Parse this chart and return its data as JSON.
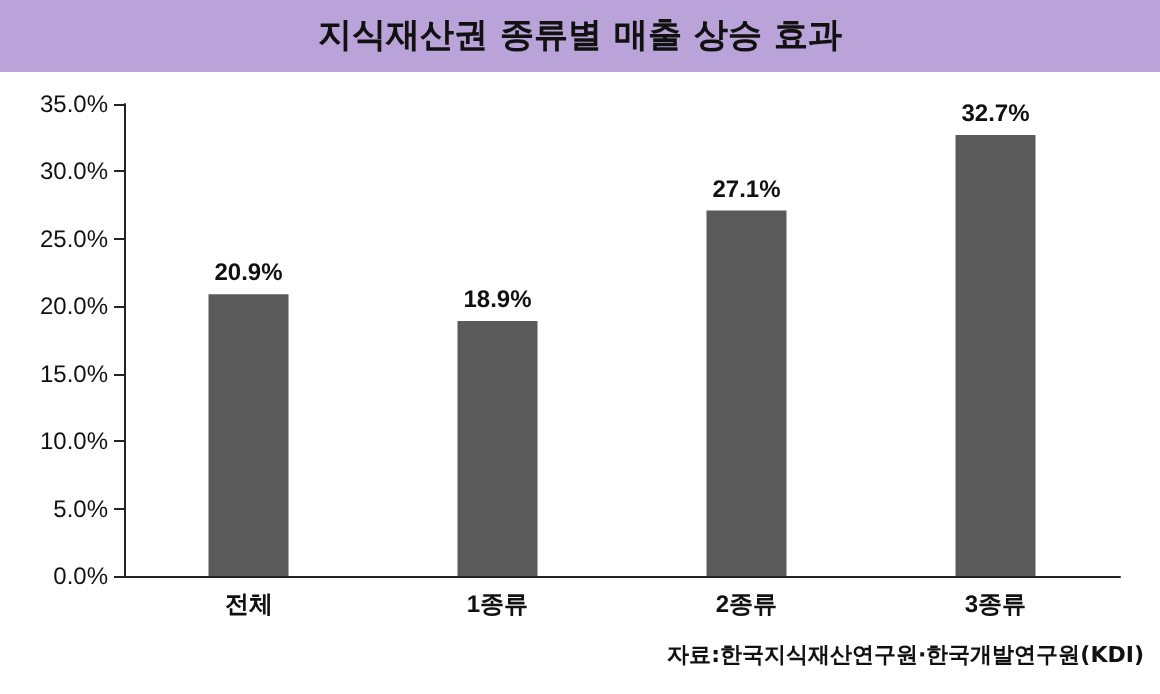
{
  "chart_data": {
    "type": "bar",
    "title": "지식재산권 종류별 매출 상승 효과",
    "categories": [
      "전체",
      "1종류",
      "2종류",
      "3종류"
    ],
    "values": [
      20.9,
      18.9,
      27.1,
      32.7
    ],
    "color": "#5a5a5a",
    "value_labels": [
      "20.9%",
      "18.9%",
      "27.1%",
      "32.7%"
    ],
    "ylim": [
      0,
      35
    ],
    "yticks": [
      {
        "value": 0,
        "label": "0.0%"
      },
      {
        "value": 5,
        "label": "5.0%"
      },
      {
        "value": 10,
        "label": "10.0%"
      },
      {
        "value": 15,
        "label": "15.0%"
      },
      {
        "value": 20,
        "label": "20.0%"
      },
      {
        "value": 25,
        "label": "25.0%"
      },
      {
        "value": 30,
        "label": "30.0%"
      },
      {
        "value": 35,
        "label": "35.0%"
      }
    ],
    "grid": false,
    "annotations": [
      "자료:한국지식재산연구원·한국개발연구원(KDI)"
    ]
  }
}
